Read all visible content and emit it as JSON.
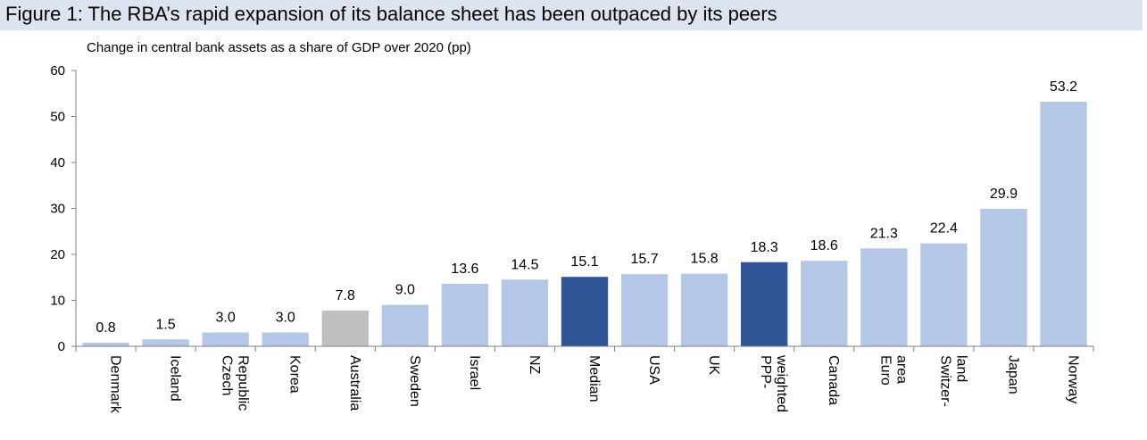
{
  "figure": {
    "title": "Figure 1: The RBA’s rapid expansion of its balance sheet has been outpaced by its peers"
  },
  "chart_data": {
    "type": "bar",
    "title": "Change in central bank assets as a share of GDP over 2020 (pp)",
    "xlabel": "",
    "ylabel": "",
    "ylim": [
      0,
      60
    ],
    "yticks": [
      0,
      10,
      20,
      30,
      40,
      50,
      60
    ],
    "grid": false,
    "legend": "none",
    "categories": [
      "Denmark",
      "Iceland",
      "Czech Republic",
      "Korea",
      "Australia",
      "Sweden",
      "Israel",
      "NZ",
      "Median",
      "USA",
      "UK",
      "PPP-weighted",
      "Canada",
      "Euro area",
      "Switzer-land",
      "Japan",
      "Norway"
    ],
    "category_label_lines": [
      [
        "Denmark"
      ],
      [
        "Iceland"
      ],
      [
        "Czech",
        "Republic"
      ],
      [
        "Korea"
      ],
      [
        "Australia"
      ],
      [
        "Sweden"
      ],
      [
        "Israel"
      ],
      [
        "NZ"
      ],
      [
        "Median"
      ],
      [
        "USA"
      ],
      [
        "UK"
      ],
      [
        "PPP-",
        "weighted"
      ],
      [
        "Canada"
      ],
      [
        "Euro",
        "area"
      ],
      [
        "Switzer-",
        "land"
      ],
      [
        "Japan"
      ],
      [
        "Norway"
      ]
    ],
    "values": [
      0.8,
      1.5,
      3.0,
      3.0,
      7.8,
      9.0,
      13.6,
      14.5,
      15.1,
      15.7,
      15.8,
      18.3,
      18.6,
      21.3,
      22.4,
      29.9,
      53.2
    ],
    "value_labels": [
      "0.8",
      "1.5",
      "3.0",
      "3.0",
      "7.8",
      "9.0",
      "13.6",
      "14.5",
      "15.1",
      "15.7",
      "15.8",
      "18.3",
      "18.6",
      "21.3",
      "22.4",
      "29.9",
      "53.2"
    ],
    "bar_colors": [
      "#b4c7e7",
      "#b4c7e7",
      "#b4c7e7",
      "#b4c7e7",
      "#bfbfbf",
      "#b4c7e7",
      "#b4c7e7",
      "#b4c7e7",
      "#2f5597",
      "#b4c7e7",
      "#b4c7e7",
      "#2f5597",
      "#b4c7e7",
      "#b4c7e7",
      "#b4c7e7",
      "#b4c7e7",
      "#b4c7e7"
    ]
  }
}
